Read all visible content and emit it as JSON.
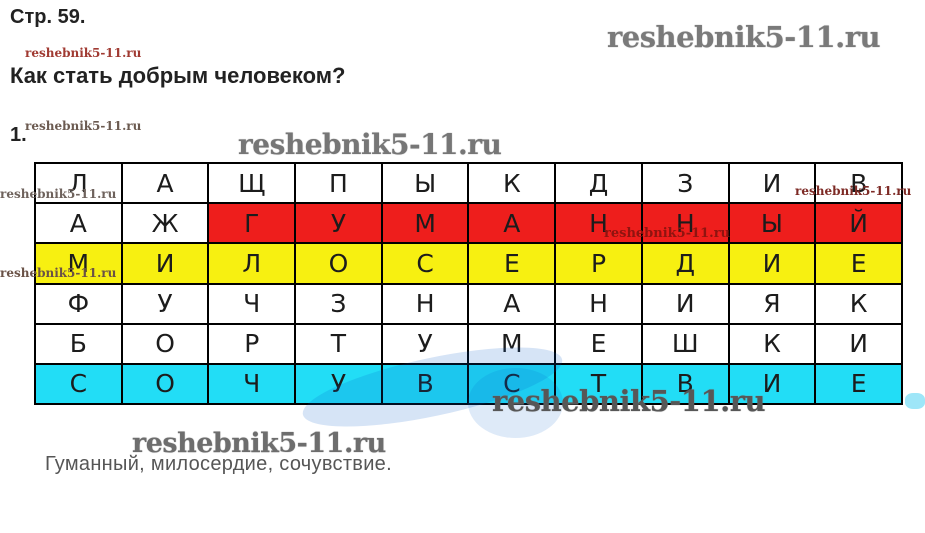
{
  "page": {
    "header": "Стр. 59.",
    "question_title": "Как стать добрым человеком?",
    "item_number": "1.",
    "answer_text": "Гуманный, милосердие, сочувствие."
  },
  "watermark": {
    "text": "reshebnik5-11.ru"
  },
  "colors": {
    "highlight_red": "#ee1e1c",
    "highlight_yellow": "#f7f011",
    "highlight_cyan": "#22ddf6",
    "watermark_gray": "#767676",
    "watermark_dark_gray": "#575757",
    "watermark_red": "#a03a32",
    "watermark_dark_red": "#8f1410",
    "answer_gray": "#565656"
  },
  "puzzle": {
    "grid": [
      [
        "Л",
        "А",
        "Щ",
        "П",
        "Ы",
        "К",
        "Д",
        "З",
        "И",
        "В"
      ],
      [
        "А",
        "Ж",
        "Г",
        "У",
        "М",
        "А",
        "Н",
        "Н",
        "Ы",
        "Й"
      ],
      [
        "М",
        "И",
        "Л",
        "О",
        "С",
        "Е",
        "Р",
        "Д",
        "И",
        "Е"
      ],
      [
        "Ф",
        "У",
        "Ч",
        "З",
        "Н",
        "А",
        "Н",
        "И",
        "Я",
        "К"
      ],
      [
        "Б",
        "О",
        "Р",
        "Т",
        "У",
        "М",
        "Е",
        "Ш",
        "К",
        "И"
      ],
      [
        "С",
        "О",
        "Ч",
        "У",
        "В",
        "С",
        "Т",
        "В",
        "И",
        "Е"
      ]
    ],
    "highlight_matrix": [
      [
        "",
        "",
        "",
        "",
        "",
        "",
        "",
        "",
        "",
        ""
      ],
      [
        "",
        "",
        "red",
        "red",
        "red",
        "red",
        "red",
        "red",
        "red",
        "red"
      ],
      [
        "yellow",
        "yellow",
        "yellow",
        "yellow",
        "yellow",
        "yellow",
        "yellow",
        "yellow",
        "yellow",
        "yellow"
      ],
      [
        "",
        "",
        "",
        "",
        "",
        "",
        "",
        "",
        "",
        ""
      ],
      [
        "",
        "",
        "",
        "",
        "",
        "",
        "",
        "",
        "",
        ""
      ],
      [
        "cyan",
        "cyan",
        "cyan",
        "cyan",
        "cyan",
        "cyan",
        "cyan",
        "cyan",
        "cyan",
        "cyan"
      ]
    ],
    "highlight_color_keys": {
      "red": "highlight_red",
      "yellow": "highlight_yellow",
      "cyan": "highlight_cyan"
    },
    "found_words": [
      {
        "word": "ГУМАННЫЙ",
        "color": "red"
      },
      {
        "word": "МИЛОСЕРДИЕ",
        "color": "yellow"
      },
      {
        "word": "СОЧУВСТВИЕ",
        "color": "cyan"
      }
    ]
  }
}
